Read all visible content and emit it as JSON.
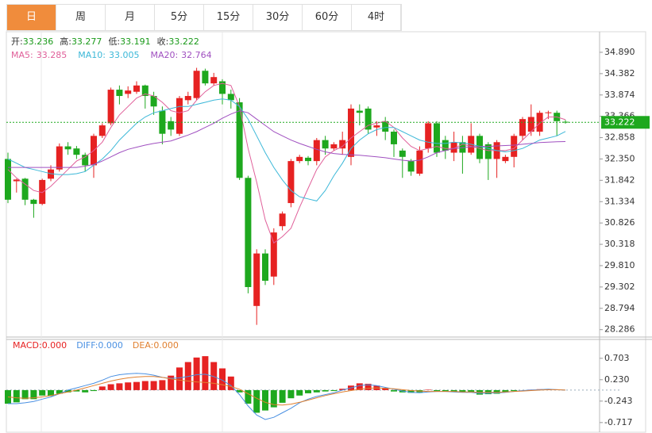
{
  "tabs": [
    "日",
    "周",
    "月",
    "5分",
    "15分",
    "30分",
    "60分",
    "4时"
  ],
  "active_tab": 0,
  "chart_data": [
    {
      "type": "candlestick",
      "ohlc_labels": {
        "open": "开:",
        "high": "高:",
        "low": "低:",
        "close": "收:"
      },
      "info_color": "#1a9a1a",
      "up_color": "#e62222",
      "down_color": "#1ea81e",
      "open": [
        32.35,
        31.82,
        31.88,
        31.38,
        31.28,
        31.88,
        32.1,
        32.65,
        32.6,
        32.45,
        32.2,
        32.9,
        33.2,
        34.0,
        33.9,
        33.95,
        34.1,
        33.85,
        33.5,
        33.25,
        32.95,
        33.75,
        33.8,
        34.45,
        34.15,
        34.2,
        33.9,
        33.7,
        31.9,
        28.85,
        30.1,
        29.55,
        30.75,
        31.3,
        32.3,
        32.38,
        32.3,
        32.8,
        32.6,
        32.6,
        32.4,
        33.5,
        33.55,
        33.1,
        33.25,
        33.0,
        32.55,
        32.3,
        32.0,
        32.6,
        33.2,
        32.8,
        32.5,
        32.75,
        32.5,
        32.9,
        32.7,
        32.35,
        32.3,
        32.4,
        32.9,
        33.0,
        33.0,
        33.45,
        33.45,
        33.236
      ],
      "high": [
        32.5,
        31.88,
        31.9,
        31.4,
        31.88,
        32.2,
        32.72,
        32.75,
        32.66,
        32.5,
        32.95,
        33.2,
        34.05,
        34.1,
        34.08,
        34.2,
        34.12,
        33.95,
        33.6,
        33.35,
        33.85,
        33.95,
        34.52,
        34.5,
        34.4,
        34.25,
        34.0,
        33.8,
        31.95,
        30.2,
        30.2,
        30.7,
        31.1,
        32.35,
        32.45,
        32.42,
        32.85,
        32.9,
        32.75,
        33.0,
        33.65,
        33.65,
        33.6,
        33.25,
        33.35,
        33.05,
        32.6,
        32.35,
        32.65,
        33.25,
        33.25,
        32.9,
        33.0,
        32.9,
        33.2,
        32.95,
        32.75,
        32.8,
        32.45,
        32.95,
        33.35,
        33.65,
        33.5,
        33.5,
        33.5,
        33.277
      ],
      "low": [
        31.3,
        31.55,
        31.25,
        30.95,
        31.25,
        31.82,
        32.05,
        32.45,
        32.35,
        32.05,
        31.9,
        32.85,
        33.15,
        33.65,
        33.8,
        33.9,
        33.55,
        33.4,
        32.7,
        32.9,
        32.9,
        33.65,
        33.75,
        34.1,
        34.1,
        33.65,
        33.55,
        31.85,
        29.15,
        28.4,
        29.35,
        29.35,
        30.65,
        31.2,
        32.25,
        32.2,
        32.2,
        32.45,
        32.55,
        32.45,
        32.2,
        33.15,
        32.95,
        32.9,
        32.8,
        32.4,
        31.9,
        31.95,
        31.95,
        32.5,
        32.4,
        32.35,
        32.3,
        32.0,
        32.45,
        32.25,
        31.85,
        31.9,
        32.25,
        32.15,
        32.8,
        32.9,
        32.9,
        33.3,
        32.9,
        33.191
      ],
      "close": [
        31.38,
        31.86,
        31.38,
        31.28,
        31.85,
        32.1,
        32.65,
        32.58,
        32.45,
        32.2,
        32.9,
        33.15,
        34.0,
        33.85,
        33.98,
        34.1,
        33.85,
        33.6,
        32.95,
        33.05,
        33.8,
        33.85,
        34.45,
        34.15,
        34.3,
        33.9,
        33.75,
        31.9,
        29.3,
        30.1,
        29.45,
        30.6,
        31.05,
        32.3,
        32.4,
        32.3,
        32.8,
        32.6,
        32.7,
        32.8,
        33.55,
        33.45,
        33.05,
        33.15,
        33.0,
        32.7,
        32.4,
        32.05,
        32.55,
        33.2,
        32.5,
        32.55,
        32.75,
        32.5,
        32.9,
        32.35,
        32.35,
        32.75,
        32.4,
        32.9,
        33.3,
        33.35,
        33.45,
        33.46,
        33.25,
        33.222
      ],
      "series": [
        {
          "name": "MA5:",
          "color": "#e0609a",
          "values": [
            32.1,
            31.9,
            31.75,
            31.6,
            31.55,
            31.7,
            31.9,
            32.1,
            32.3,
            32.4,
            32.55,
            32.75,
            33.1,
            33.4,
            33.6,
            33.8,
            33.9,
            33.85,
            33.7,
            33.5,
            33.45,
            33.5,
            33.75,
            33.95,
            34.1,
            34.15,
            34.1,
            33.6,
            32.6,
            31.8,
            30.9,
            30.35,
            30.5,
            30.7,
            31.2,
            31.65,
            32.1,
            32.4,
            32.55,
            32.65,
            32.85,
            33.0,
            33.15,
            33.2,
            33.25,
            33.1,
            32.85,
            32.65,
            32.55,
            32.6,
            32.65,
            32.6,
            32.6,
            32.7,
            32.65,
            32.6,
            32.55,
            32.55,
            32.55,
            32.6,
            32.8,
            33.0,
            33.2,
            33.35,
            33.35,
            33.285
          ]
        },
        {
          "name": "MA10:",
          "color": "#3cb8d8",
          "values": [
            32.35,
            32.25,
            32.15,
            32.1,
            32.05,
            32.0,
            31.98,
            31.98,
            32.0,
            32.05,
            32.2,
            32.35,
            32.55,
            32.8,
            33.0,
            33.2,
            33.35,
            33.45,
            33.5,
            33.55,
            33.6,
            33.6,
            33.65,
            33.7,
            33.75,
            33.78,
            33.75,
            33.6,
            33.3,
            32.9,
            32.5,
            32.15,
            31.85,
            31.6,
            31.45,
            31.4,
            31.35,
            31.6,
            31.95,
            32.25,
            32.6,
            32.8,
            32.95,
            33.05,
            33.1,
            33.1,
            33.0,
            32.9,
            32.8,
            32.75,
            32.72,
            32.72,
            32.75,
            32.73,
            32.7,
            32.65,
            32.6,
            32.55,
            32.52,
            32.55,
            32.6,
            32.7,
            32.8,
            32.85,
            32.9,
            33.005
          ]
        },
        {
          "name": "MA20:",
          "color": "#a050c0",
          "values": [
            32.15,
            32.15,
            32.15,
            32.15,
            32.15,
            32.15,
            32.15,
            32.15,
            32.15,
            32.18,
            32.22,
            32.3,
            32.4,
            32.5,
            32.58,
            32.63,
            32.68,
            32.72,
            32.75,
            32.78,
            32.85,
            32.92,
            33.0,
            33.1,
            33.2,
            33.32,
            33.42,
            33.5,
            33.45,
            33.3,
            33.15,
            33.0,
            32.9,
            32.8,
            32.72,
            32.65,
            32.58,
            32.52,
            32.48,
            32.46,
            32.45,
            32.44,
            32.42,
            32.4,
            32.38,
            32.35,
            32.32,
            32.3,
            32.32,
            32.4,
            32.5,
            32.55,
            32.6,
            32.62,
            32.64,
            32.65,
            32.65,
            32.66,
            32.67,
            32.68,
            32.7,
            32.72,
            32.74,
            32.75,
            32.76,
            32.764
          ]
        }
      ],
      "ylim": [
        28.11,
        35.38
      ],
      "yticks": [
        {
          "value": 34.89,
          "label": "34.890"
        },
        34.382,
        33.874,
        33.366,
        32.858,
        {
          "value": 32.35,
          "label": "32.350"
        },
        31.842,
        31.334,
        30.826,
        30.318,
        {
          "value": 29.81,
          "label": "29.810"
        },
        29.302,
        28.794,
        28.286
      ]
    },
    {
      "type": "macd",
      "series": [
        {
          "name": "MACD:",
          "color": "#e62222",
          "last_value_label": "0.000",
          "values": [
            -0.3,
            -0.27,
            -0.2,
            -0.2,
            -0.12,
            -0.13,
            -0.08,
            -0.05,
            -0.03,
            -0.05,
            -0.02,
            0.08,
            0.13,
            0.15,
            0.17,
            0.18,
            0.2,
            0.2,
            0.22,
            0.32,
            0.5,
            0.62,
            0.72,
            0.75,
            0.62,
            0.48,
            0.3,
            -0.05,
            -0.3,
            -0.5,
            -0.45,
            -0.38,
            -0.28,
            -0.18,
            -0.12,
            -0.07,
            -0.05,
            -0.03,
            -0.02,
            0.03,
            0.1,
            0.15,
            0.14,
            0.1,
            0.05,
            -0.03,
            -0.05,
            -0.06,
            -0.05,
            0.01,
            -0.02,
            -0.03,
            -0.03,
            -0.04,
            -0.05,
            -0.1,
            -0.09,
            -0.08,
            -0.05,
            -0.02,
            0,
            0.01,
            0.02,
            0.02,
            0.01,
            0
          ]
        },
        {
          "name": "DIFF:",
          "color": "#4a90e2",
          "last_value_label": "0.000",
          "values": [
            -0.3,
            -0.3,
            -0.28,
            -0.25,
            -0.2,
            -0.15,
            -0.08,
            0,
            0.05,
            0.1,
            0.15,
            0.22,
            0.3,
            0.34,
            0.36,
            0.37,
            0.36,
            0.33,
            0.28,
            0.26,
            0.27,
            0.3,
            0.34,
            0.35,
            0.3,
            0.22,
            0.1,
            -0.1,
            -0.35,
            -0.55,
            -0.65,
            -0.6,
            -0.5,
            -0.4,
            -0.28,
            -0.2,
            -0.14,
            -0.1,
            -0.06,
            0,
            0.05,
            0.1,
            0.12,
            0.1,
            0.06,
            0.02,
            -0.02,
            -0.05,
            -0.06,
            -0.04,
            -0.03,
            -0.03,
            -0.04,
            -0.05,
            -0.05,
            -0.07,
            -0.07,
            -0.06,
            -0.05,
            -0.03,
            -0.01,
            0,
            0.01,
            0.02,
            0.01,
            0
          ]
        },
        {
          "name": "DEA:",
          "color": "#e08030",
          "last_value_label": "0.000",
          "values": [
            -0.15,
            -0.17,
            -0.18,
            -0.17,
            -0.15,
            -0.12,
            -0.08,
            -0.04,
            0,
            0.05,
            0.1,
            0.15,
            0.2,
            0.24,
            0.27,
            0.29,
            0.3,
            0.3,
            0.28,
            0.25,
            0.22,
            0.2,
            0.18,
            0.17,
            0.15,
            0.12,
            0.08,
            0.02,
            -0.08,
            -0.18,
            -0.27,
            -0.32,
            -0.33,
            -0.31,
            -0.27,
            -0.22,
            -0.17,
            -0.12,
            -0.08,
            -0.04,
            -0.01,
            0.02,
            0.04,
            0.05,
            0.04,
            0.03,
            0.01,
            -0.01,
            -0.02,
            -0.03,
            -0.03,
            -0.03,
            -0.03,
            -0.04,
            -0.04,
            -0.05,
            -0.05,
            -0.05,
            -0.04,
            -0.03,
            -0.02,
            -0.01,
            0,
            0.01,
            0.01,
            0
          ]
        }
      ],
      "down_color": "#1ea81e",
      "ylim": [
        -0.93,
        1.12
      ],
      "yticks": [
        0.703,
        {
          "value": 0.23,
          "label": "0.230"
        },
        -0.243,
        -0.717
      ]
    }
  ]
}
